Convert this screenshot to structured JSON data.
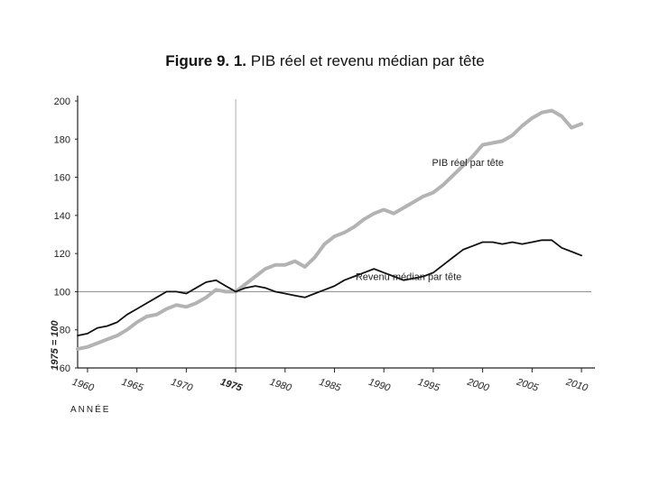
{
  "figure": {
    "title_number": "Figure 9. 1.",
    "title_text": "PIB réel et revenu médian par tête"
  },
  "chart_data": {
    "type": "line",
    "title": "Figure 9. 1. PIB réel et revenu médian par tête",
    "xlabel": "ANNÉE",
    "ylabel": "1975 = 100",
    "xlim": [
      1959,
      2011
    ],
    "ylim": [
      60,
      200
    ],
    "yticks": [
      60,
      80,
      100,
      120,
      140,
      160,
      180,
      200
    ],
    "xticks": [
      1960,
      1965,
      1970,
      1975,
      1980,
      1985,
      1990,
      1995,
      2000,
      2005,
      2010
    ],
    "highlight_year": 1975,
    "reference_line_y": 100,
    "series": [
      {
        "name": "PIB réel par tête",
        "color": "#b3b3b3",
        "x": [
          1959,
          1960,
          1961,
          1962,
          1963,
          1964,
          1965,
          1966,
          1967,
          1968,
          1969,
          1970,
          1971,
          1972,
          1973,
          1974,
          1975,
          1976,
          1977,
          1978,
          1979,
          1980,
          1981,
          1982,
          1983,
          1984,
          1985,
          1986,
          1987,
          1988,
          1989,
          1990,
          1991,
          1992,
          1993,
          1994,
          1995,
          1996,
          1997,
          1998,
          1999,
          2000,
          2001,
          2002,
          2003,
          2004,
          2005,
          2006,
          2007,
          2008,
          2009,
          2010
        ],
        "values": [
          70,
          71,
          73,
          75,
          77,
          80,
          84,
          87,
          88,
          91,
          93,
          92,
          94,
          97,
          101,
          100,
          100,
          104,
          108,
          112,
          114,
          114,
          116,
          113,
          118,
          125,
          129,
          131,
          134,
          138,
          141,
          143,
          141,
          144,
          147,
          150,
          152,
          156,
          161,
          166,
          171,
          177,
          178,
          179,
          182,
          187,
          191,
          194,
          195,
          192,
          186,
          188
        ]
      },
      {
        "name": "Revenu médian par tête",
        "color": "#111111",
        "x": [
          1959,
          1960,
          1961,
          1962,
          1963,
          1964,
          1965,
          1966,
          1967,
          1968,
          1969,
          1970,
          1971,
          1972,
          1973,
          1974,
          1975,
          1976,
          1977,
          1978,
          1979,
          1980,
          1981,
          1982,
          1983,
          1984,
          1985,
          1986,
          1987,
          1988,
          1989,
          1990,
          1991,
          1992,
          1993,
          1994,
          1995,
          1996,
          1997,
          1998,
          1999,
          2000,
          2001,
          2002,
          2003,
          2004,
          2005,
          2006,
          2007,
          2008,
          2009,
          2010
        ],
        "values": [
          77,
          78,
          81,
          82,
          84,
          88,
          91,
          94,
          97,
          100,
          100,
          99,
          102,
          105,
          106,
          103,
          100,
          102,
          103,
          102,
          100,
          99,
          98,
          97,
          99,
          101,
          103,
          106,
          108,
          110,
          112,
          110,
          108,
          106,
          107,
          108,
          110,
          114,
          118,
          122,
          124,
          126,
          126,
          125,
          126,
          125,
          126,
          127,
          127,
          123,
          121,
          119
        ]
      }
    ],
    "annotations": [
      {
        "text": "PIB réel par tête",
        "x": 1998.5,
        "y": 166
      },
      {
        "text": "Revenu médian par tête",
        "x": 1992.5,
        "y": 106
      }
    ]
  }
}
